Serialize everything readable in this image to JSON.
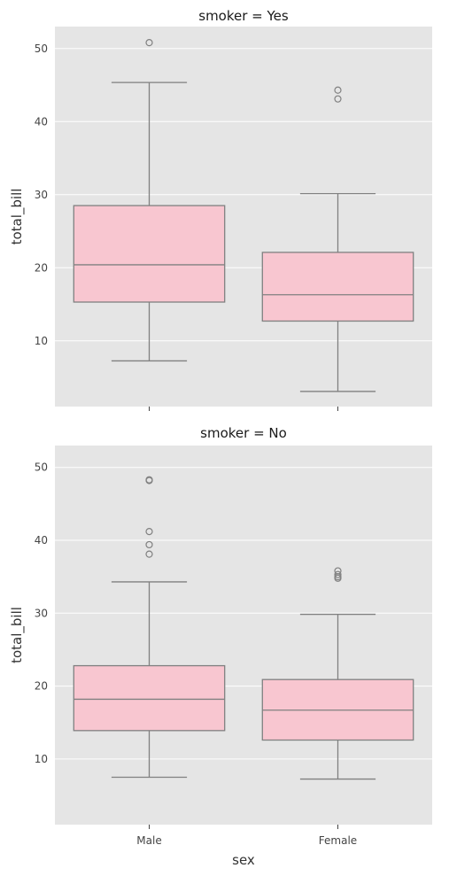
{
  "chart_data": {
    "type": "box",
    "colors": {
      "box_fill": "#f8c6d0",
      "box_line": "#808080",
      "panel_bg": "#e5e5e5",
      "grid": "#ffffff"
    },
    "categories": [
      "Male",
      "Female"
    ],
    "xlabel": "sex",
    "ylabel": "total_bill",
    "ylim": [
      1,
      53
    ],
    "yticks": [
      10,
      20,
      30,
      40,
      50
    ],
    "grid": true,
    "panels": [
      {
        "title": "smoker = Yes",
        "boxes": [
          {
            "category": "Male",
            "whislo": 7.25,
            "q1": 15.3,
            "median": 20.4,
            "q3": 28.5,
            "whishi": 45.35,
            "fliers": [
              50.8
            ]
          },
          {
            "category": "Female",
            "whislo": 3.07,
            "q1": 12.7,
            "median": 16.3,
            "q3": 22.1,
            "whishi": 30.14,
            "fliers": [
              43.1,
              44.3
            ]
          }
        ]
      },
      {
        "title": "smoker = No",
        "boxes": [
          {
            "category": "Male",
            "whislo": 7.5,
            "q1": 13.9,
            "median": 18.2,
            "q3": 22.8,
            "whishi": 34.3,
            "fliers": [
              38.1,
              39.4,
              41.2,
              48.2,
              48.3
            ]
          },
          {
            "category": "Female",
            "whislo": 7.25,
            "q1": 12.6,
            "median": 16.7,
            "q3": 20.9,
            "whishi": 29.85,
            "fliers": [
              34.8,
              35.0,
              35.3,
              35.8
            ]
          }
        ]
      }
    ]
  }
}
